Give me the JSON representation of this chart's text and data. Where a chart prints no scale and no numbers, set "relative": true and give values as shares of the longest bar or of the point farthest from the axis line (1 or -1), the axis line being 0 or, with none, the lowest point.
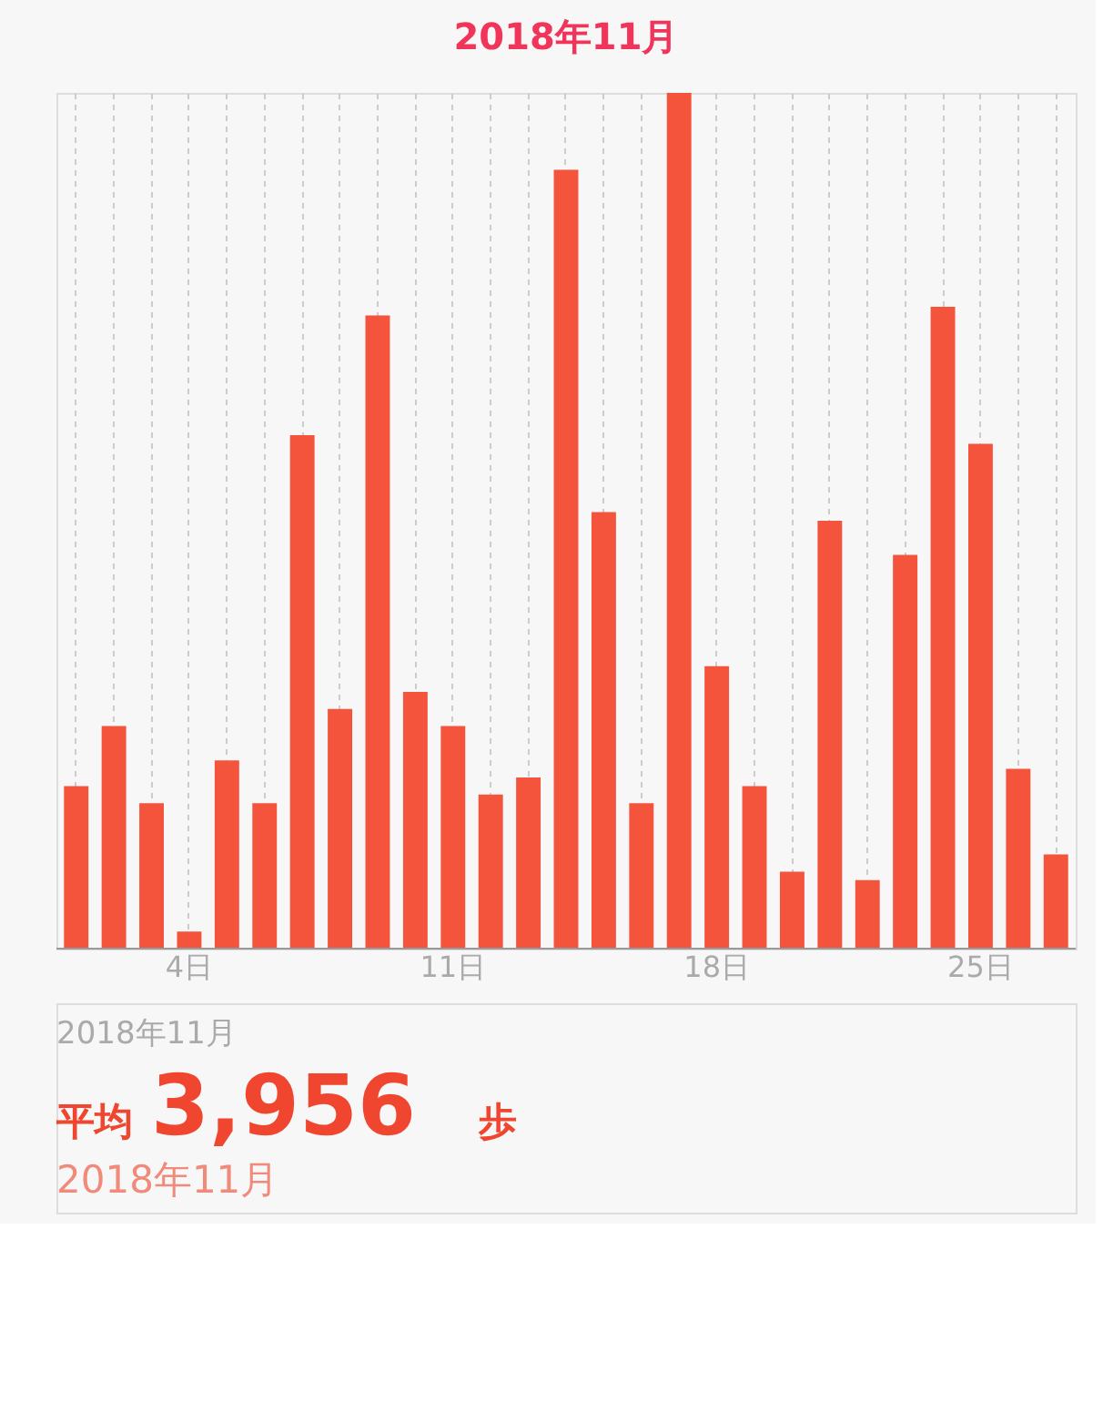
{
  "chart_data": {
    "type": "bar",
    "title": "2018年11月",
    "categories": [
      null,
      null,
      null,
      "4日",
      null,
      null,
      null,
      null,
      null,
      null,
      "11日",
      null,
      null,
      null,
      null,
      null,
      null,
      "18日",
      null,
      null,
      null,
      null,
      null,
      null,
      "25日",
      null,
      null
    ],
    "values": [
      0.19,
      0.26,
      0.17,
      0.02,
      0.22,
      0.17,
      0.6,
      0.28,
      0.74,
      0.3,
      0.26,
      0.18,
      0.2,
      0.91,
      0.51,
      0.17,
      1,
      0.33,
      0.19,
      0.09,
      0.5,
      0.08,
      0.46,
      0.75,
      0.59,
      0.21,
      0.11
    ],
    "color": "#f4533c",
    "relative": true,
    "grid": "x",
    "annotations": [
      "2018年11月",
      "平均",
      "3,956",
      "歩",
      "2018年11月"
    ]
  }
}
